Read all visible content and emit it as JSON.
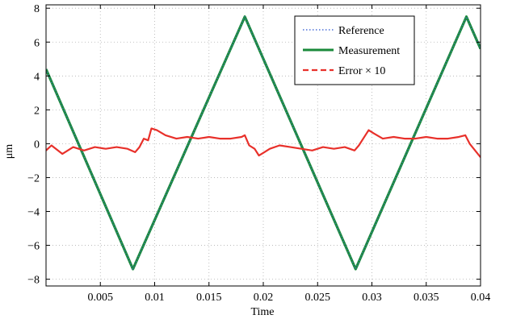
{
  "chart_data": {
    "type": "line",
    "title": "",
    "xlabel": "Time",
    "ylabel": "μm",
    "xlim": [
      0,
      0.04
    ],
    "ylim": [
      -8.4,
      8.2
    ],
    "grid": true,
    "legend_position": "top-right",
    "x_ticks": [
      0.005,
      0.01,
      0.015,
      0.02,
      0.025,
      0.03,
      0.035,
      0.04
    ],
    "x_tick_labels": [
      "0.005",
      "0.01",
      "0.015",
      "0.02",
      "0.025",
      "0.03",
      "0.035",
      "0.04"
    ],
    "y_ticks": [
      -8,
      -6,
      -4,
      -2,
      0,
      2,
      4,
      6,
      8
    ],
    "y_tick_labels": [
      "−8",
      "−6",
      "−4",
      "−2",
      "0",
      "2",
      "4",
      "6",
      "8"
    ],
    "series": [
      {
        "name": "Reference",
        "color": "#4a6fd8",
        "style": "dotted",
        "x": [
          0,
          0.008,
          0.0183,
          0.0285,
          0.0387,
          0.04
        ],
        "y": [
          4.4,
          -7.4,
          7.5,
          -7.4,
          7.5,
          5.6
        ]
      },
      {
        "name": "Measurement",
        "color": "#1a8a3a",
        "style": "solid",
        "x": [
          0,
          0.008,
          0.0183,
          0.0285,
          0.0387,
          0.04
        ],
        "y": [
          4.4,
          -7.4,
          7.5,
          -7.4,
          7.5,
          5.6
        ]
      },
      {
        "name": "Error × 10",
        "color": "#e8302a",
        "style": "solid",
        "x": [
          0,
          0.0005,
          0.0015,
          0.0025,
          0.0035,
          0.0045,
          0.0055,
          0.0065,
          0.0075,
          0.0082,
          0.0086,
          0.009,
          0.0094,
          0.0097,
          0.0102,
          0.011,
          0.012,
          0.013,
          0.014,
          0.015,
          0.016,
          0.017,
          0.018,
          0.0183,
          0.0187,
          0.0192,
          0.0196,
          0.0201,
          0.0206,
          0.0215,
          0.0225,
          0.0235,
          0.0245,
          0.0255,
          0.0265,
          0.0275,
          0.0284,
          0.0288,
          0.0292,
          0.0297,
          0.0302,
          0.031,
          0.032,
          0.033,
          0.034,
          0.035,
          0.036,
          0.037,
          0.038,
          0.0386,
          0.039,
          0.0395,
          0.04
        ],
        "y": [
          -0.4,
          -0.1,
          -0.6,
          -0.2,
          -0.4,
          -0.2,
          -0.3,
          -0.2,
          -0.3,
          -0.5,
          -0.2,
          0.3,
          0.2,
          0.9,
          0.8,
          0.5,
          0.3,
          0.4,
          0.3,
          0.4,
          0.3,
          0.3,
          0.4,
          0.5,
          -0.1,
          -0.3,
          -0.7,
          -0.5,
          -0.3,
          -0.1,
          -0.2,
          -0.3,
          -0.4,
          -0.2,
          -0.3,
          -0.2,
          -0.4,
          -0.1,
          0.3,
          0.8,
          0.6,
          0.3,
          0.4,
          0.3,
          0.3,
          0.4,
          0.3,
          0.3,
          0.4,
          0.5,
          0.0,
          -0.4,
          -0.8
        ]
      }
    ]
  }
}
